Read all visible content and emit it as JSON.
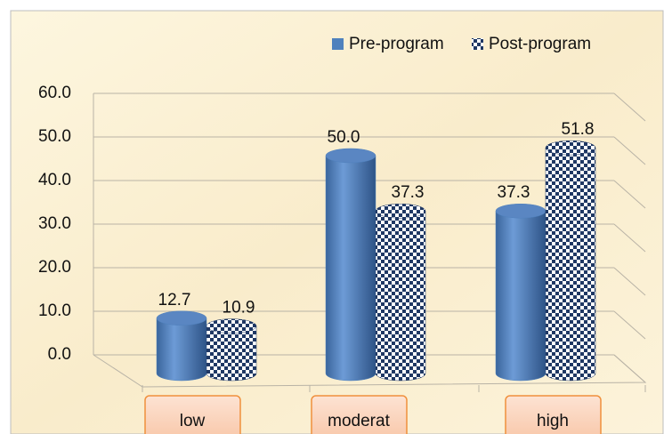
{
  "chart_data": {
    "type": "bar3d",
    "categories": [
      "low",
      "moderat",
      "high"
    ],
    "series": [
      {
        "name": "Pre-program",
        "color": "#4f81bd",
        "values": [
          12.7,
          50.0,
          37.3
        ],
        "value_labels": [
          "12.7",
          "50.0",
          "37.3"
        ]
      },
      {
        "name": "Post-program",
        "color": "#1f3864",
        "values": [
          10.9,
          37.3,
          51.8
        ],
        "value_labels": [
          "10.9",
          "37.3",
          "51.8"
        ]
      }
    ],
    "ylim": [
      0,
      60
    ],
    "yticks": [
      {
        "value": 0,
        "label": "0.0"
      },
      {
        "value": 10,
        "label": "10.0"
      },
      {
        "value": 20,
        "label": "20.0"
      },
      {
        "value": 30,
        "label": "30.0"
      },
      {
        "value": 40,
        "label": "40.0"
      },
      {
        "value": 50,
        "label": "50.0"
      },
      {
        "value": 60,
        "label": "60.0"
      }
    ],
    "grid": true,
    "legend": "top-right"
  }
}
